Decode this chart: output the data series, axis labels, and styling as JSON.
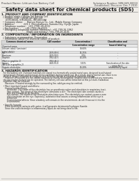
{
  "bg_color": "#f0ede8",
  "header_left": "Product Name: Lithium Ion Battery Cell",
  "header_right_line1": "Substance Number: SBN-049-00010",
  "header_right_line2": "Established / Revision: Dec.7.2010",
  "title": "Safety data sheet for chemical products (SDS)",
  "s1_title": "1. PRODUCT AND COMPANY IDENTIFICATION",
  "s1_lines": [
    "  • Product name: Lithium Ion Battery Cell",
    "  • Product code: Cylindrical-type cell",
    "      (IHF18650J, IHF18650L, IHF18650A)",
    "  • Company name:      Bansyo Enesys Co., Ltd., Mobile Energy Company",
    "  • Address:             223-1  Kamishakusen, Sumoto-City, Hyogo, Japan",
    "  • Telephone number:   +81-(799)-26-4111",
    "  • Fax number:         +81-(799)-26-4123",
    "  • Emergency telephone number (Weekday): +81-799-26-3962",
    "                                    (Night and holiday): +81-799-26-4101"
  ],
  "s2_title": "2. COMPOSITION / INFORMATION ON INGREDIENTS",
  "s2_line1": "  • Substance or preparation: Preparation",
  "s2_line2": "  • Information about the chemical nature of product:",
  "th": [
    "Common chemical name",
    "CAS number",
    "Concentration /\nConcentration range",
    "Classification and\nhazard labeling"
  ],
  "tr": [
    [
      "Chemical name",
      "",
      "",
      ""
    ],
    [
      "Lithium cobalt (laminate)\n(LiMnCoNiO2)",
      "-",
      "30-60%",
      ""
    ],
    [
      "Iron",
      "7439-89-6",
      "15-25%",
      "-"
    ],
    [
      "Aluminum",
      "7429-90-5",
      "2-5%",
      "-"
    ],
    [
      "Graphite\n(Most in graphite-1)\n(At little in graphite-2)",
      "7782-42-5\n7782-44-2",
      "10-20%",
      "-"
    ],
    [
      "Copper",
      "7440-50-8",
      "5-15%",
      "Sensitization of the skin\ngroup No.2"
    ],
    [
      "Organic electrolyte",
      "-",
      "10-20%",
      "Inflammatory liquid"
    ]
  ],
  "s3_title": "3. HAZARDS IDENTIFICATION",
  "s3_lines": [
    "   For the battery cell, chemical materials are stored in a hermetically sealed metal case, designed to withstand",
    "   temperature changes and pressure-stress conditions during normal use. As a result, during normal use, there is no",
    "   physical danger of ignition or explosion and therefore danger of hazardous materials leakage.",
    "      However, if exposed to a fire, added mechanical shocks, decomposed, ambient electro without any measures,",
    "   the gas maybe evolved can be operated. The battery cell case will be breached at this juncture, hazardous",
    "   materials may be released.",
    "      Moreover, if heated strongly by the surrounding fire, solid gas may be emitted.",
    "",
    "   • Most important hazard and effects:",
    "      Human health effects:",
    "         Inhalation: The steam of the electrolyte has an anesthesia action and stimulates in respiratory tract.",
    "         Skin contact: The steam of the electrolyte stimulates a skin. The electrolyte skin contact causes a",
    "         sore and stimulation on the skin.",
    "         Eye contact: The steam of the electrolyte stimulates eyes. The electrolyte eye contact causes a sore",
    "         and stimulation on the eye. Especially, substance that causes a strong inflammation of the eye is",
    "         contained.",
    "         Environmental affects: Since a battery cell remains in the environment, do not throw out it into the",
    "         environment.",
    "",
    "   • Specific hazards:",
    "      If the electrolyte contacts with water, it will generate detrimental hydrogen fluoride.",
    "      Since the used electrolyte is inflammatory liquid, do not bring close to fire."
  ]
}
